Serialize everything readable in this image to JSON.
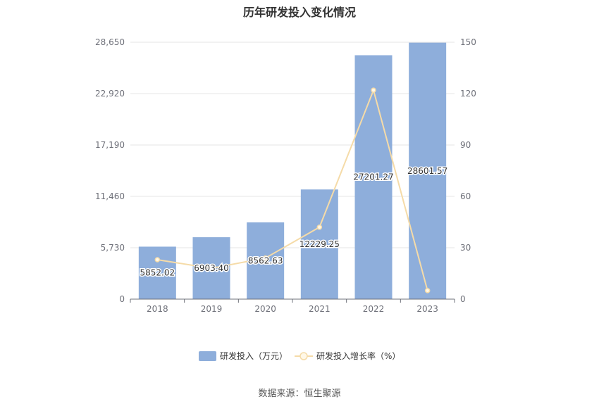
{
  "colors": {
    "bar": "#8eaedb",
    "line": "#f5dba8",
    "marker_fill": "#fff8e8",
    "grid": "#e6e6e6",
    "axis_text": "#6e7079"
  },
  "chart_data": {
    "type": "bar",
    "title": "历年研发投入变化情况",
    "categories": [
      "2018",
      "2019",
      "2020",
      "2021",
      "2022",
      "2023"
    ],
    "series": [
      {
        "name": "研发投入（万元）",
        "type": "bar",
        "axis": "left",
        "values": [
          5852.02,
          6903.4,
          8562.63,
          12229.25,
          27201.27,
          28601.57
        ],
        "labels": [
          "5852.02",
          "6903.40",
          "8562.63",
          "12229.25",
          "27201.27",
          "28601.57"
        ]
      },
      {
        "name": "研发投入增长率（%）",
        "type": "line",
        "axis": "right",
        "values": [
          23,
          18,
          24,
          42,
          122,
          5
        ]
      }
    ],
    "y_left": {
      "min": 0,
      "max": 28650,
      "ticks": [
        0,
        5730,
        11460,
        17190,
        22920,
        28650
      ],
      "tick_labels": [
        "0",
        "5,730",
        "11,460",
        "17,190",
        "22,920",
        "28,650"
      ]
    },
    "y_right": {
      "min": 0,
      "max": 150,
      "ticks": [
        0,
        30,
        60,
        90,
        120,
        150
      ],
      "tick_labels": [
        "0",
        "30",
        "60",
        "90",
        "120",
        "150"
      ]
    },
    "grid": true,
    "legend_position": "bottom"
  },
  "source": "数据来源：恒生聚源"
}
